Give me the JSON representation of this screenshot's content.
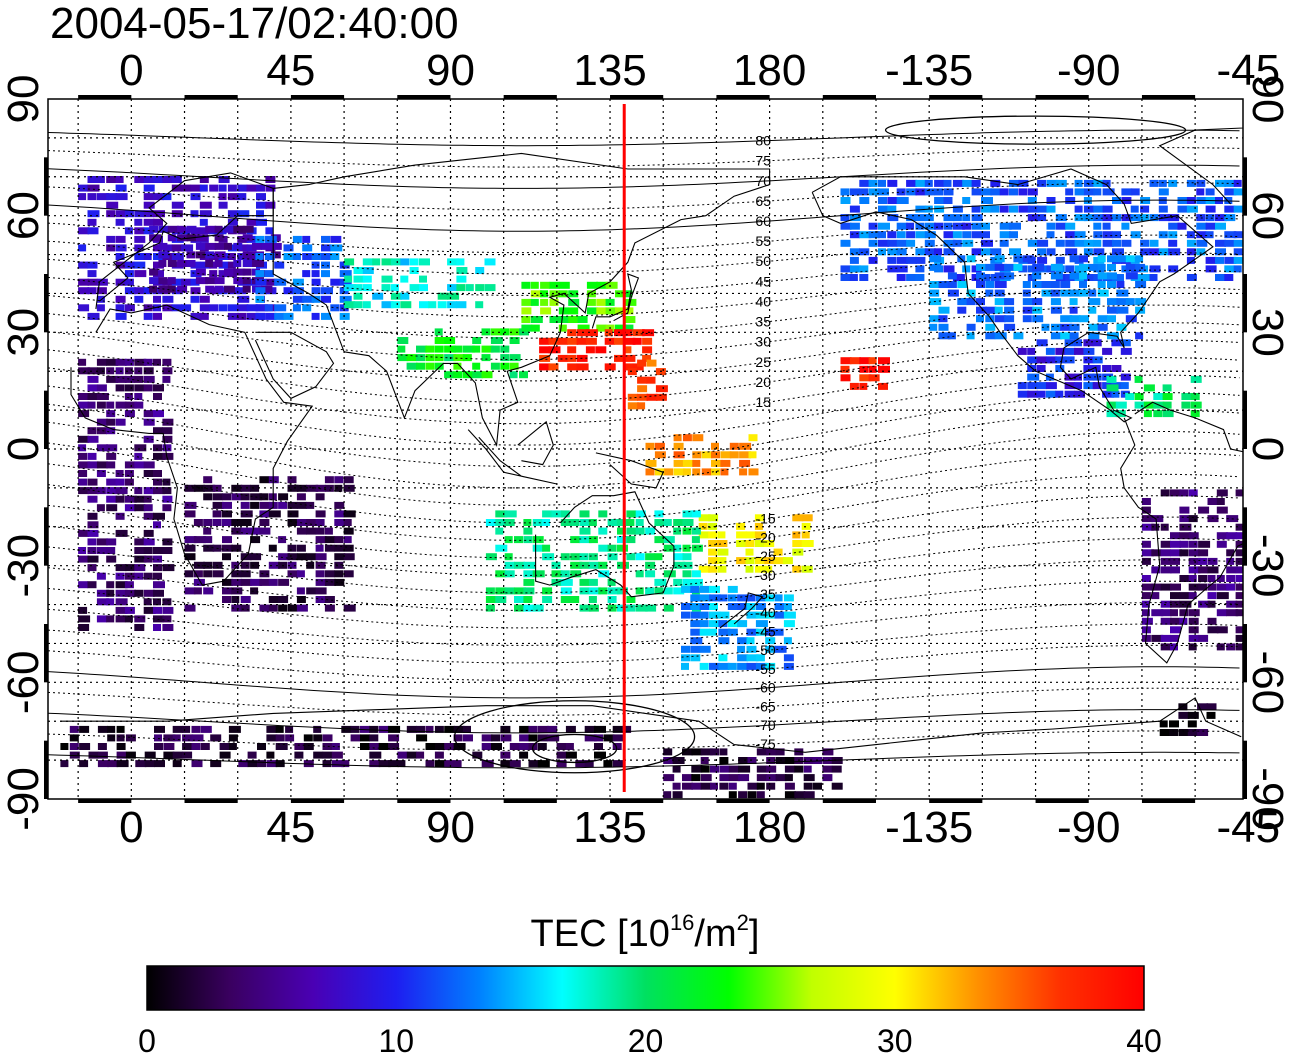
{
  "title": "2004-05-17/02:40:00",
  "map": {
    "lon_ticks": [
      {
        "label": "0",
        "lon": 0
      },
      {
        "label": "45",
        "lon": 45
      },
      {
        "label": "90",
        "lon": 90
      },
      {
        "label": "135",
        "lon": 135
      },
      {
        "label": "180",
        "lon": 180
      },
      {
        "label": "-135",
        "lon": 225
      },
      {
        "label": "-90",
        "lon": 270
      },
      {
        "label": "-45",
        "lon": 315
      }
    ],
    "lat_ticks": [
      {
        "label": "90",
        "lat": 90
      },
      {
        "label": "60",
        "lat": 60
      },
      {
        "label": "30",
        "lat": 30
      },
      {
        "label": "0",
        "lat": 0
      },
      {
        "label": "-30",
        "lat": -30
      },
      {
        "label": "-60",
        "lat": -60
      },
      {
        "label": "-90",
        "lat": -90
      }
    ],
    "lon_range": [
      -23.5,
      313.5
    ],
    "lat_range": [
      -90,
      90
    ],
    "grid_lon_step": 15,
    "grid_lat_step": 10,
    "meridian_marker_lon": 139,
    "meridian_marker_color": "#ff0000",
    "mlat_contour_labels_north": [
      "80",
      "75",
      "70",
      "65",
      "60",
      "55",
      "50",
      "45",
      "40",
      "35",
      "30",
      "25",
      "20",
      "15"
    ],
    "mlat_contour_labels_south": [
      "-15",
      "-20",
      "-25",
      "-30",
      "-35",
      "-40",
      "-45",
      "-50",
      "-55",
      "-60",
      "-65",
      "-70",
      "-75"
    ]
  },
  "colorbar": {
    "label_main": "TEC  [10",
    "label_exp1": "16",
    "label_mid": "/m",
    "label_exp2": "2",
    "label_end": "]",
    "ticks": [
      "0",
      "10",
      "20",
      "30",
      "40"
    ],
    "tick_values": [
      0,
      10,
      20,
      30,
      40
    ],
    "range": [
      0,
      40
    ],
    "colormap": [
      "#000000",
      "#3a0060",
      "#4a00b4",
      "#1e1ef0",
      "#0080ff",
      "#00ffff",
      "#00e060",
      "#00ff00",
      "#c0ff00",
      "#ffff00",
      "#ff9000",
      "#ff3000",
      "#ff0000"
    ]
  },
  "chart_data": {
    "type": "heatmap",
    "title": "2004-05-17/02:40:00",
    "xlabel": "",
    "ylabel": "",
    "colorbar_label": "TEC [10^16/m^2]",
    "xlim": [
      -23.5,
      313.5
    ],
    "ylim": [
      -90,
      90
    ],
    "value_range": [
      0,
      40
    ],
    "regions": [
      {
        "lon": [
          -15,
          40
        ],
        "lat": [
          35,
          72
        ],
        "tec": 8
      },
      {
        "lon": [
          5,
          40
        ],
        "lat": [
          42,
          58
        ],
        "tec": 6
      },
      {
        "lon": [
          35,
          60
        ],
        "lat": [
          35,
          55
        ],
        "tec": 12
      },
      {
        "lon": [
          60,
          100
        ],
        "lat": [
          38,
          50
        ],
        "tec": 17
      },
      {
        "lon": [
          75,
          110
        ],
        "lat": [
          20,
          32
        ],
        "tec": 22
      },
      {
        "lon": [
          110,
          140
        ],
        "lat": [
          32,
          45
        ],
        "tec": 24
      },
      {
        "lon": [
          115,
          145
        ],
        "lat": [
          22,
          32
        ],
        "tec": 38
      },
      {
        "lon": [
          140,
          150
        ],
        "lat": [
          12,
          25
        ],
        "tec": 36
      },
      {
        "lon": [
          145,
          175
        ],
        "lat": [
          -5,
          5
        ],
        "tec": 33
      },
      {
        "lon": [
          160,
          190
        ],
        "lat": [
          -30,
          -15
        ],
        "tec": 30
      },
      {
        "lon": [
          200,
          212
        ],
        "lat": [
          17,
          25
        ],
        "tec": 38
      },
      {
        "lon": [
          100,
          160
        ],
        "lat": [
          -40,
          -15
        ],
        "tec": 19
      },
      {
        "lon": [
          155,
          185
        ],
        "lat": [
          -55,
          -35
        ],
        "tec": 14
      },
      {
        "lon": [
          200,
          320
        ],
        "lat": [
          45,
          70
        ],
        "tec": 12
      },
      {
        "lon": [
          225,
          285
        ],
        "lat": [
          30,
          50
        ],
        "tec": 13
      },
      {
        "lon": [
          250,
          280
        ],
        "lat": [
          15,
          30
        ],
        "tec": 10
      },
      {
        "lon": [
          275,
          300
        ],
        "lat": [
          10,
          20
        ],
        "tec": 20
      },
      {
        "lon": [
          285,
          320
        ],
        "lat": [
          -50,
          -10
        ],
        "tec": 4
      },
      {
        "lon": [
          -15,
          10
        ],
        "lat": [
          -45,
          25
        ],
        "tec": 4
      },
      {
        "lon": [
          15,
          60
        ],
        "lat": [
          -40,
          -5
        ],
        "tec": 3
      },
      {
        "lon": [
          -20,
          140
        ],
        "lat": [
          -80,
          -70
        ],
        "tec": 2
      },
      {
        "lon": [
          150,
          200
        ],
        "lat": [
          -88,
          -75
        ],
        "tec": 2
      },
      {
        "lon": [
          290,
          305
        ],
        "lat": [
          -72,
          -65
        ],
        "tec": 1
      }
    ]
  }
}
